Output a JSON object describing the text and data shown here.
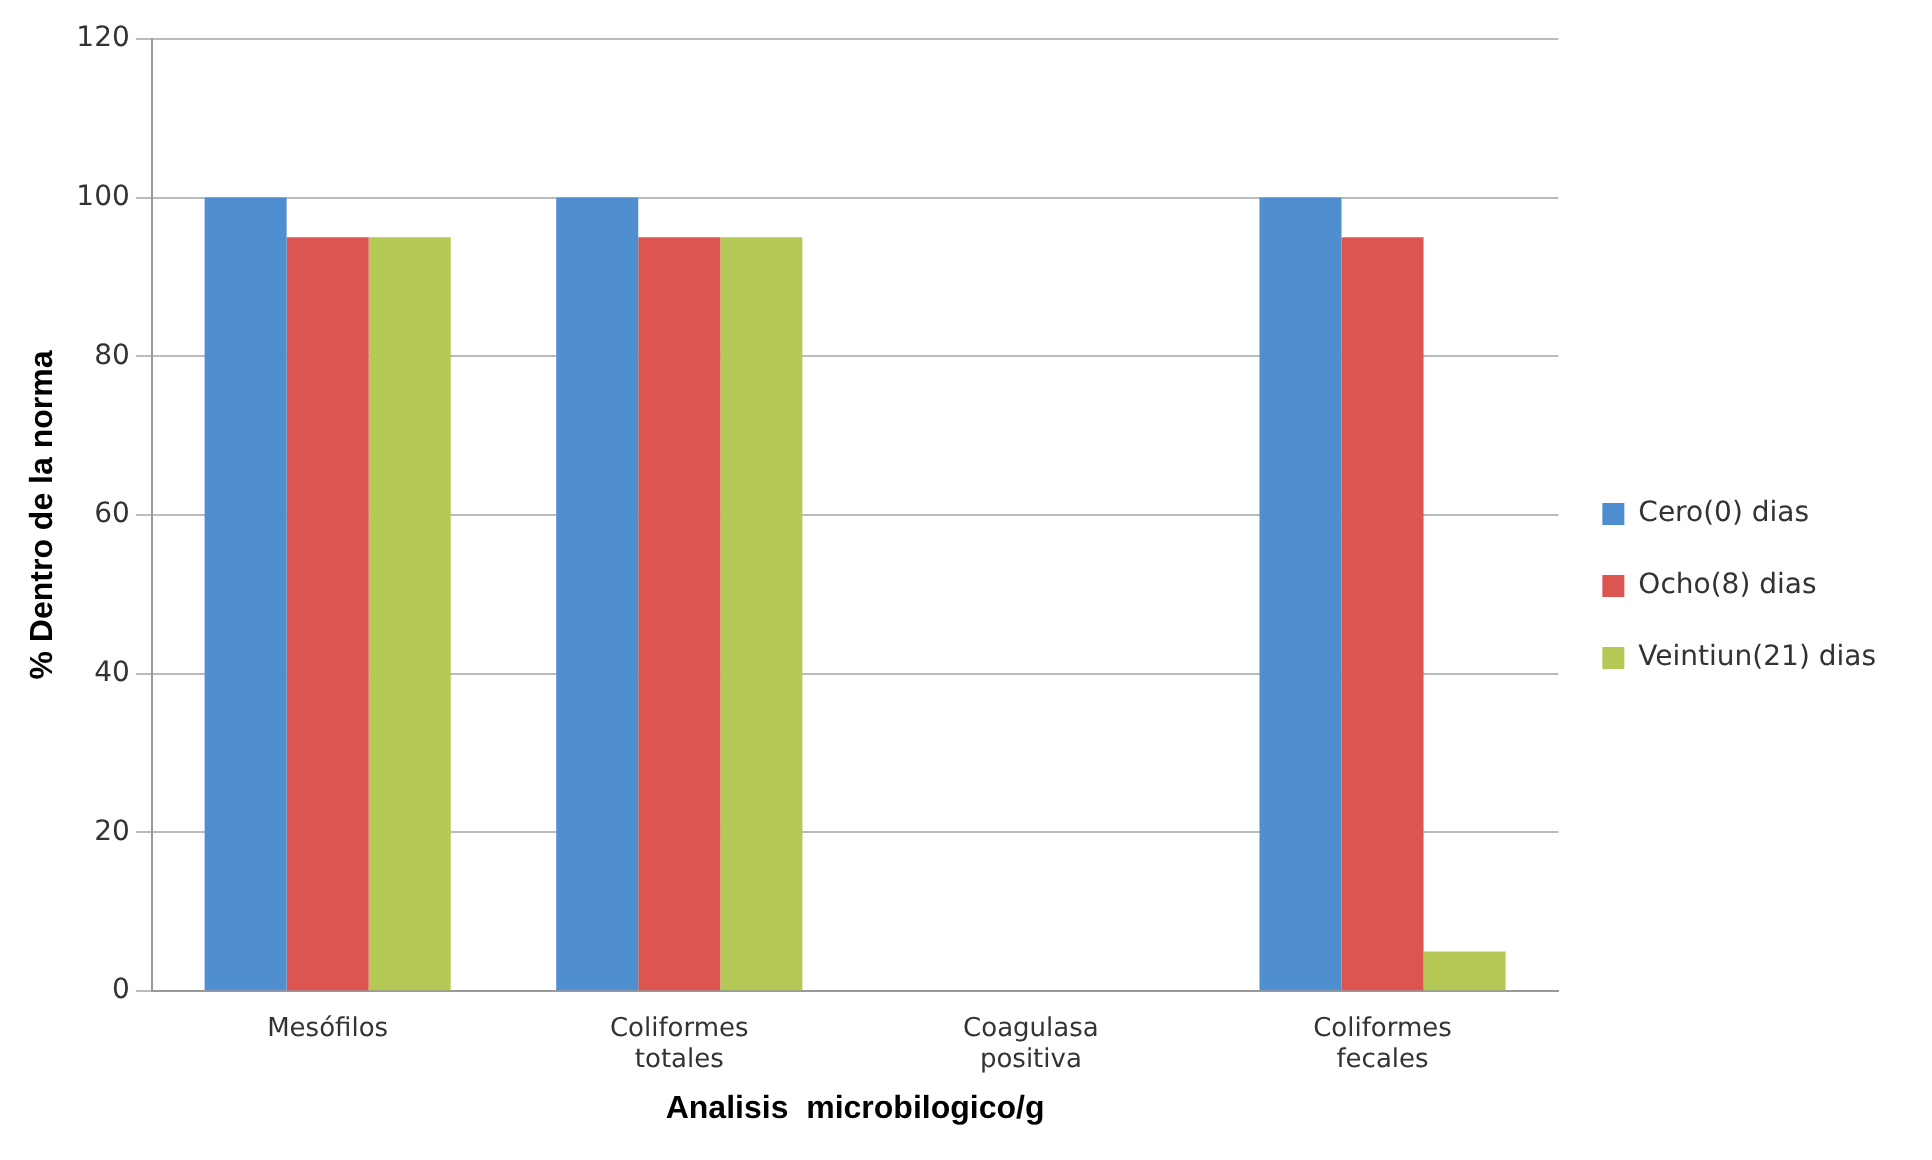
{
  "chart_data": {
    "type": "bar",
    "xlabel": "Analisis  microbilogico/g",
    "ylabel": "% Dentro de la norma",
    "categories": [
      "Mesófilos",
      "Coliformes totales",
      "Coagulasa positiva",
      "Coliformes fecales"
    ],
    "series": [
      {
        "name": "Cero(0) dias",
        "color": "#4f8fd0",
        "values": [
          100,
          100,
          0,
          100
        ]
      },
      {
        "name": "Ocho(8) dias",
        "color": "#dd5550",
        "values": [
          95,
          95,
          0,
          95
        ]
      },
      {
        "name": "Veintiun(21) dias",
        "color": "#b5c956",
        "values": [
          95,
          95,
          0,
          5
        ]
      }
    ],
    "ylim": [
      0,
      120
    ],
    "yticks": [
      0,
      20,
      40,
      60,
      80,
      100,
      120
    ],
    "grid": "y",
    "legend": "right"
  }
}
